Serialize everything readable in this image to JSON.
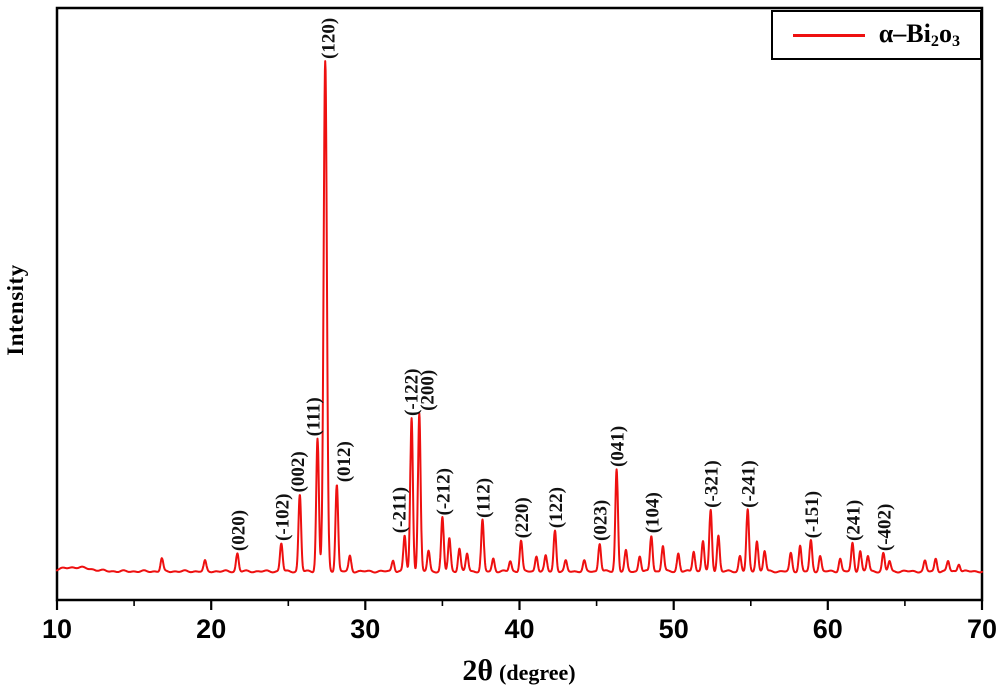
{
  "figure": {
    "background": "#ffffff"
  },
  "chart_data": {
    "type": "line",
    "title": "",
    "xlabel_main": "2θ",
    "xlabel_sub": "(degree)",
    "ylabel": "Intensity",
    "xlim": [
      10,
      70
    ],
    "x_ticks": [
      10,
      20,
      30,
      40,
      50,
      60,
      70
    ],
    "y_tick_labels_visible": false,
    "grid": false,
    "line_color": "#ee1010",
    "axis_color": "#000000",
    "baseline_intensity": 1.3,
    "legend": {
      "position": "top-right",
      "prefix": "α–Bi",
      "sub1": "2",
      "mid": "o",
      "sub2": "3",
      "swatch_color": "#ee1010"
    },
    "peaks": [
      {
        "label": "(020)",
        "two_theta": 21.7,
        "intensity": 3.5
      },
      {
        "label": "(-102)",
        "two_theta": 24.55,
        "intensity": 5.5
      },
      {
        "label": "(002)",
        "two_theta": 25.75,
        "intensity": 15,
        "label_dx": -3
      },
      {
        "label": "(111)",
        "two_theta": 26.9,
        "intensity": 26,
        "label_dx": -5
      },
      {
        "label": "(120)",
        "two_theta": 27.4,
        "intensity": 100,
        "label_dx": 2
      },
      {
        "label": "(012)",
        "two_theta": 28.15,
        "intensity": 17,
        "label_dx": 6
      },
      {
        "label": "(-211)",
        "two_theta": 32.55,
        "intensity": 7,
        "label_dx": -6
      },
      {
        "label": "(-122)",
        "two_theta": 33.0,
        "intensity": 30,
        "label_dx": -1
      },
      {
        "label": "(200)",
        "two_theta": 33.5,
        "intensity": 31,
        "label_dx": 7
      },
      {
        "label": "(-212)",
        "two_theta": 35.0,
        "intensity": 10.5
      },
      {
        "label": "(112)",
        "two_theta": 37.6,
        "intensity": 10
      },
      {
        "label": "(220)",
        "two_theta": 40.1,
        "intensity": 6
      },
      {
        "label": "(122)",
        "two_theta": 42.3,
        "intensity": 8
      },
      {
        "label": "(023)",
        "two_theta": 45.2,
        "intensity": 5.5
      },
      {
        "label": "(041)",
        "two_theta": 46.3,
        "intensity": 20
      },
      {
        "label": "(104)",
        "two_theta": 48.55,
        "intensity": 7
      },
      {
        "label": "(-321)",
        "two_theta": 52.4,
        "intensity": 12
      },
      {
        "label": "(-241)",
        "two_theta": 54.8,
        "intensity": 12
      },
      {
        "label": "(-151)",
        "two_theta": 58.9,
        "intensity": 6
      },
      {
        "label": "(241)",
        "two_theta": 61.6,
        "intensity": 5.5
      },
      {
        "label": "(-402)",
        "two_theta": 63.6,
        "intensity": 3.5
      }
    ],
    "minor_peaks": [
      [
        16.8,
        2.5
      ],
      [
        19.6,
        2.0
      ],
      [
        29.0,
        3.0
      ],
      [
        31.8,
        2.2
      ],
      [
        34.1,
        4.0
      ],
      [
        35.45,
        6.5
      ],
      [
        36.1,
        4.5
      ],
      [
        36.6,
        3.5
      ],
      [
        38.3,
        2.5
      ],
      [
        39.4,
        2.0
      ],
      [
        41.1,
        3.0
      ],
      [
        41.7,
        3.0
      ],
      [
        43.0,
        2.0
      ],
      [
        44.2,
        2.0
      ],
      [
        46.9,
        4.0
      ],
      [
        47.8,
        3.0
      ],
      [
        49.3,
        5.0
      ],
      [
        50.3,
        3.5
      ],
      [
        51.3,
        4.0
      ],
      [
        51.9,
        6.0
      ],
      [
        52.9,
        7.0
      ],
      [
        54.3,
        3.0
      ],
      [
        55.4,
        6.0
      ],
      [
        55.9,
        4.0
      ],
      [
        57.6,
        3.5
      ],
      [
        58.2,
        5.0
      ],
      [
        59.5,
        3.0
      ],
      [
        60.8,
        2.5
      ],
      [
        62.1,
        4.0
      ],
      [
        62.6,
        3.0
      ],
      [
        64.0,
        2.0
      ],
      [
        66.3,
        2.0
      ],
      [
        67.0,
        2.5
      ],
      [
        67.8,
        2.0
      ],
      [
        68.5,
        1.5
      ]
    ]
  }
}
